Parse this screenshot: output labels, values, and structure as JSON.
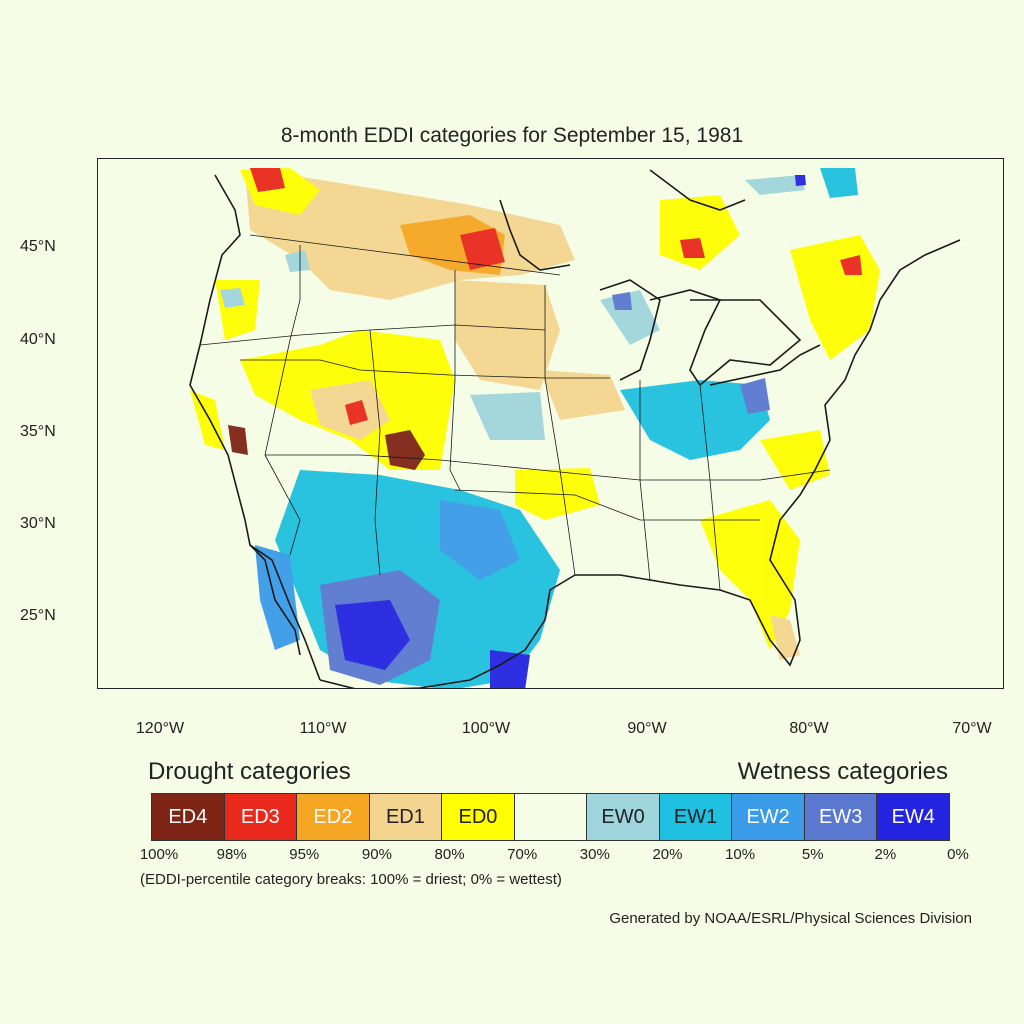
{
  "title": "8-month EDDI categories for September 15, 1981",
  "lat_labels": [
    "45°N",
    "40°N",
    "35°N",
    "30°N",
    "25°N"
  ],
  "lon_labels": [
    "120°W",
    "110°W",
    "100°W",
    "90°W",
    "80°W",
    "70°W"
  ],
  "drought_heading": "Drought categories",
  "wetness_heading": "Wetness categories",
  "legend": [
    {
      "label": "ED4",
      "color": "#7e2516",
      "text_color": "#ffffff"
    },
    {
      "label": "ED3",
      "color": "#e8291c",
      "text_color": "#ffffff"
    },
    {
      "label": "ED2",
      "color": "#f5a623",
      "text_color": "#ffffff"
    },
    {
      "label": "ED1",
      "color": "#f3d58f",
      "text_color": "#222222"
    },
    {
      "label": "ED0",
      "color": "#ffff00",
      "text_color": "#222222"
    },
    {
      "label": "",
      "color": "#f5fde6",
      "text_color": "#222222"
    },
    {
      "label": "EW0",
      "color": "#9fd5dc",
      "text_color": "#222222"
    },
    {
      "label": "EW1",
      "color": "#1fc0e0",
      "text_color": "#222222"
    },
    {
      "label": "EW2",
      "color": "#3a9be8",
      "text_color": "#ffffff"
    },
    {
      "label": "EW3",
      "color": "#5b78d0",
      "text_color": "#ffffff"
    },
    {
      "label": "EW4",
      "color": "#2424e0",
      "text_color": "#ffffff"
    }
  ],
  "breaks": [
    "100%",
    "98%",
    "95%",
    "90%",
    "80%",
    "70%",
    "30%",
    "20%",
    "10%",
    "5%",
    "2%",
    "0%"
  ],
  "note": "(EDDI-percentile category breaks: 100% = driest; 0% = wettest)",
  "credit": "Generated by NOAA/ESRL/Physical Sciences Division"
}
